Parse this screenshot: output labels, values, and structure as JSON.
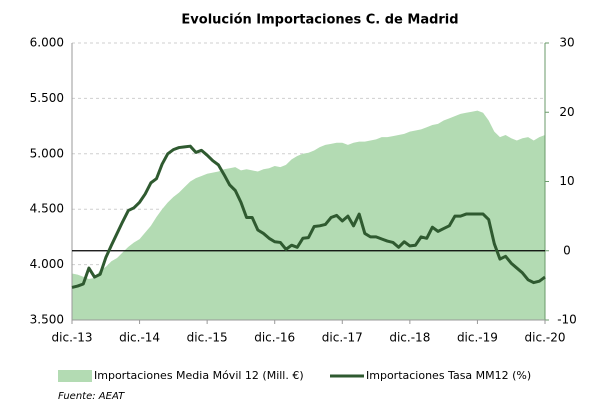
{
  "chart_data": {
    "type": "area-line",
    "title": "Evolución Importaciones C. de Madrid",
    "source": "Fuente: AEAT",
    "categories": [
      "dic.-13",
      null,
      null,
      null,
      null,
      null,
      null,
      null,
      null,
      null,
      null,
      null,
      "dic.-14",
      null,
      null,
      null,
      null,
      null,
      null,
      null,
      null,
      null,
      null,
      null,
      "dic.-15",
      null,
      null,
      null,
      null,
      null,
      null,
      null,
      null,
      null,
      null,
      null,
      "dic.-16",
      null,
      null,
      null,
      null,
      null,
      null,
      null,
      null,
      null,
      null,
      null,
      "dic.-17",
      null,
      null,
      null,
      null,
      null,
      null,
      null,
      null,
      null,
      null,
      null,
      "dic.-18",
      null,
      null,
      null,
      null,
      null,
      null,
      null,
      null,
      null,
      null,
      null,
      "dic.-19",
      null,
      null,
      null,
      null,
      null,
      null,
      null,
      null,
      null,
      null,
      null,
      "dic.-20"
    ],
    "series": [
      {
        "name": "Importaciones Media Móvil 12 (Mill. €)",
        "kind": "area",
        "color": "#b3dbb3",
        "values": [
          3920,
          3910,
          3890,
          3870,
          3880,
          3950,
          3980,
          4030,
          4060,
          4110,
          4160,
          4200,
          4230,
          4290,
          4350,
          4430,
          4500,
          4560,
          4610,
          4650,
          4700,
          4750,
          4780,
          4800,
          4820,
          4830,
          4840,
          4860,
          4870,
          4880,
          4850,
          4860,
          4850,
          4840,
          4860,
          4870,
          4890,
          4880,
          4900,
          4950,
          4980,
          5000,
          5010,
          5030,
          5060,
          5080,
          5090,
          5100,
          5100,
          5080,
          5100,
          5110,
          5110,
          5120,
          5130,
          5150,
          5150,
          5160,
          5170,
          5180,
          5200,
          5210,
          5220,
          5240,
          5260,
          5270,
          5300,
          5320,
          5340,
          5360,
          5370,
          5380,
          5390,
          5370,
          5300,
          5200,
          5150,
          5170,
          5140,
          5120,
          5140,
          5150,
          5120,
          5150,
          5170
        ]
      },
      {
        "name": "Importaciones Tasa MM12 (%)",
        "kind": "line",
        "axis": "y2",
        "color": "#2f5a30",
        "values": [
          -5.3,
          -5.1,
          -4.8,
          -2.5,
          -3.8,
          -3.4,
          -1.0,
          0.8,
          2.5,
          4.2,
          5.8,
          6.2,
          7.0,
          8.2,
          9.8,
          10.4,
          12.5,
          14.0,
          14.6,
          14.9,
          15.0,
          15.1,
          14.2,
          14.5,
          13.8,
          13.0,
          12.4,
          11.0,
          9.5,
          8.7,
          7.0,
          4.8,
          4.8,
          3.0,
          2.5,
          1.8,
          1.3,
          1.2,
          0.2,
          0.8,
          0.5,
          1.8,
          1.9,
          3.5,
          3.6,
          3.8,
          4.8,
          5.1,
          4.3,
          5.0,
          3.6,
          5.3,
          2.5,
          2.0,
          2.0,
          1.7,
          1.4,
          1.2,
          0.5,
          1.3,
          0.7,
          0.8,
          2.0,
          1.8,
          3.4,
          2.8,
          3.2,
          3.6,
          5.0,
          5.0,
          5.3,
          5.3,
          5.3,
          5.3,
          4.5,
          1.0,
          -1.2,
          -0.8,
          -1.8,
          -2.5,
          -3.2,
          -4.2,
          -4.6,
          -4.4,
          -3.8
        ]
      }
    ],
    "ylim": [
      3500,
      6000
    ],
    "yticks": [
      {
        "value": 3500,
        "label": "3.500"
      },
      {
        "value": 4000,
        "label": "4.000"
      },
      {
        "value": 4500,
        "label": "4.500"
      },
      {
        "value": 5000,
        "label": "5.000"
      },
      {
        "value": 5500,
        "label": "5.500"
      },
      {
        "value": 6000,
        "label": "6.000"
      }
    ],
    "y2lim": [
      -10,
      30
    ],
    "y2ticks": [
      -10,
      0,
      10,
      20,
      30
    ],
    "grid": true,
    "legend": "bottom"
  }
}
